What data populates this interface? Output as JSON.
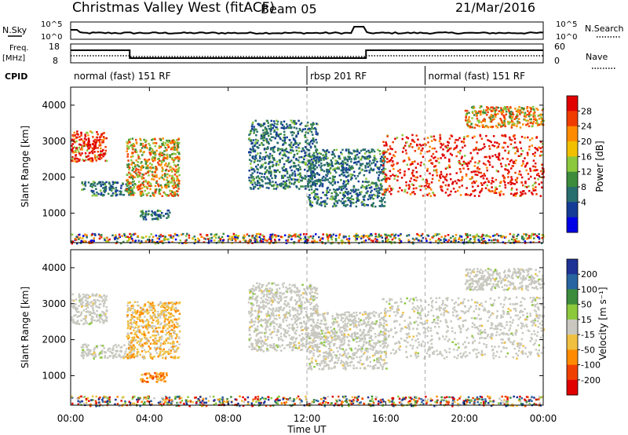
{
  "header": {
    "station": "Christmas Valley West (fitACF)",
    "beam": "Beam 05",
    "date": "21/Mar/2016"
  },
  "noise_panel": {
    "left_label": "N.Sky",
    "right_label": "N.Search",
    "ticks_left": [
      "10^5",
      "10^0"
    ],
    "ticks_right": [
      "10^5",
      "10^0"
    ]
  },
  "freq_panel": {
    "left_label_line1": "Freq.",
    "left_label_line2": "[MHz]",
    "right_label": "Nave",
    "ticks_left": [
      "18",
      "8"
    ],
    "ticks_right": [
      "60",
      "0"
    ]
  },
  "cpid": {
    "label": "CPID",
    "segments": [
      {
        "name": "normal (fast) 151 RF",
        "start": 0,
        "end": 12
      },
      {
        "name": "rbsp 201 RF",
        "start": 12,
        "end": 18
      },
      {
        "name": "normal (fast) 151 RF",
        "start": 18,
        "end": 24
      }
    ]
  },
  "chart_data": [
    {
      "type": "heatmap",
      "parameter": "power",
      "ylabel": "Slant Range [km]",
      "ylim": [
        180,
        4500
      ],
      "xlim": [
        0,
        24
      ],
      "yticks": [
        1000,
        2000,
        3000,
        4000
      ],
      "colorbar": {
        "label": "Power [dB]",
        "ticks": [
          "28",
          "24",
          "20",
          "16",
          "12",
          "8",
          "4"
        ],
        "colors": [
          "#e00000",
          "#f03c00",
          "#ff8c00",
          "#f0c000",
          "#8cc83c",
          "#3c8c3c",
          "#286e6e",
          "#143c96",
          "#0000e6"
        ]
      },
      "regions": [
        {
          "t": [
            0.0,
            1.8
          ],
          "r": [
            2450,
            3300
          ],
          "level": "high"
        },
        {
          "t": [
            0.5,
            3.2
          ],
          "r": [
            1500,
            1900
          ],
          "level": "low"
        },
        {
          "t": [
            2.8,
            5.5
          ],
          "r": [
            1500,
            3100
          ],
          "level": "mid"
        },
        {
          "t": [
            3.5,
            5.0
          ],
          "r": [
            850,
            1100
          ],
          "level": "low"
        },
        {
          "t": [
            9.0,
            12.5
          ],
          "r": [
            1700,
            3600
          ],
          "level": "low"
        },
        {
          "t": [
            12.0,
            16.0
          ],
          "r": [
            1200,
            2800
          ],
          "level": "low"
        },
        {
          "t": [
            15.8,
            24.0
          ],
          "r": [
            1500,
            3200
          ],
          "level": "high"
        },
        {
          "t": [
            20.0,
            24.0
          ],
          "r": [
            3400,
            4000
          ],
          "level": "mid"
        },
        {
          "t": [
            0.0,
            24.0
          ],
          "r": [
            180,
            450
          ],
          "level": "mixed"
        }
      ]
    },
    {
      "type": "heatmap",
      "parameter": "velocity",
      "ylabel": "Slant Range [km]",
      "xlabel": "Time UT",
      "ylim": [
        180,
        4500
      ],
      "xlim": [
        0,
        24
      ],
      "yticks": [
        1000,
        2000,
        3000,
        4000
      ],
      "xticks": [
        "00:00",
        "04:00",
        "08:00",
        "12:00",
        "16:00",
        "20:00",
        "00:00"
      ],
      "colorbar": {
        "label": "Velocity [m s⁻¹]",
        "ticks": [
          "200",
          "100",
          "50",
          "15",
          "-15",
          "-50",
          "-100",
          "-200"
        ],
        "colors": [
          "#1e3296",
          "#2864a0",
          "#3c8c3c",
          "#8cc83c",
          "#c8c8c0",
          "#f0c040",
          "#ff8c00",
          "#f04000",
          "#e00000"
        ]
      },
      "regions": [
        {
          "t": [
            0.0,
            1.8
          ],
          "r": [
            2450,
            3300
          ],
          "level": "gray"
        },
        {
          "t": [
            0.5,
            3.2
          ],
          "r": [
            1500,
            1900
          ],
          "level": "gray"
        },
        {
          "t": [
            2.8,
            5.5
          ],
          "r": [
            1500,
            3100
          ],
          "level": "mixed-yellow"
        },
        {
          "t": [
            3.5,
            5.0
          ],
          "r": [
            850,
            1100
          ],
          "level": "orange"
        },
        {
          "t": [
            9.0,
            12.5
          ],
          "r": [
            1700,
            3600
          ],
          "level": "gray"
        },
        {
          "t": [
            12.0,
            16.0
          ],
          "r": [
            1200,
            2800
          ],
          "level": "gray"
        },
        {
          "t": [
            15.8,
            24.0
          ],
          "r": [
            1500,
            3200
          ],
          "level": "gray"
        },
        {
          "t": [
            20.0,
            24.0
          ],
          "r": [
            3400,
            4000
          ],
          "level": "gray"
        },
        {
          "t": [
            0.0,
            24.0
          ],
          "r": [
            180,
            450
          ],
          "level": "mixed"
        }
      ]
    }
  ]
}
